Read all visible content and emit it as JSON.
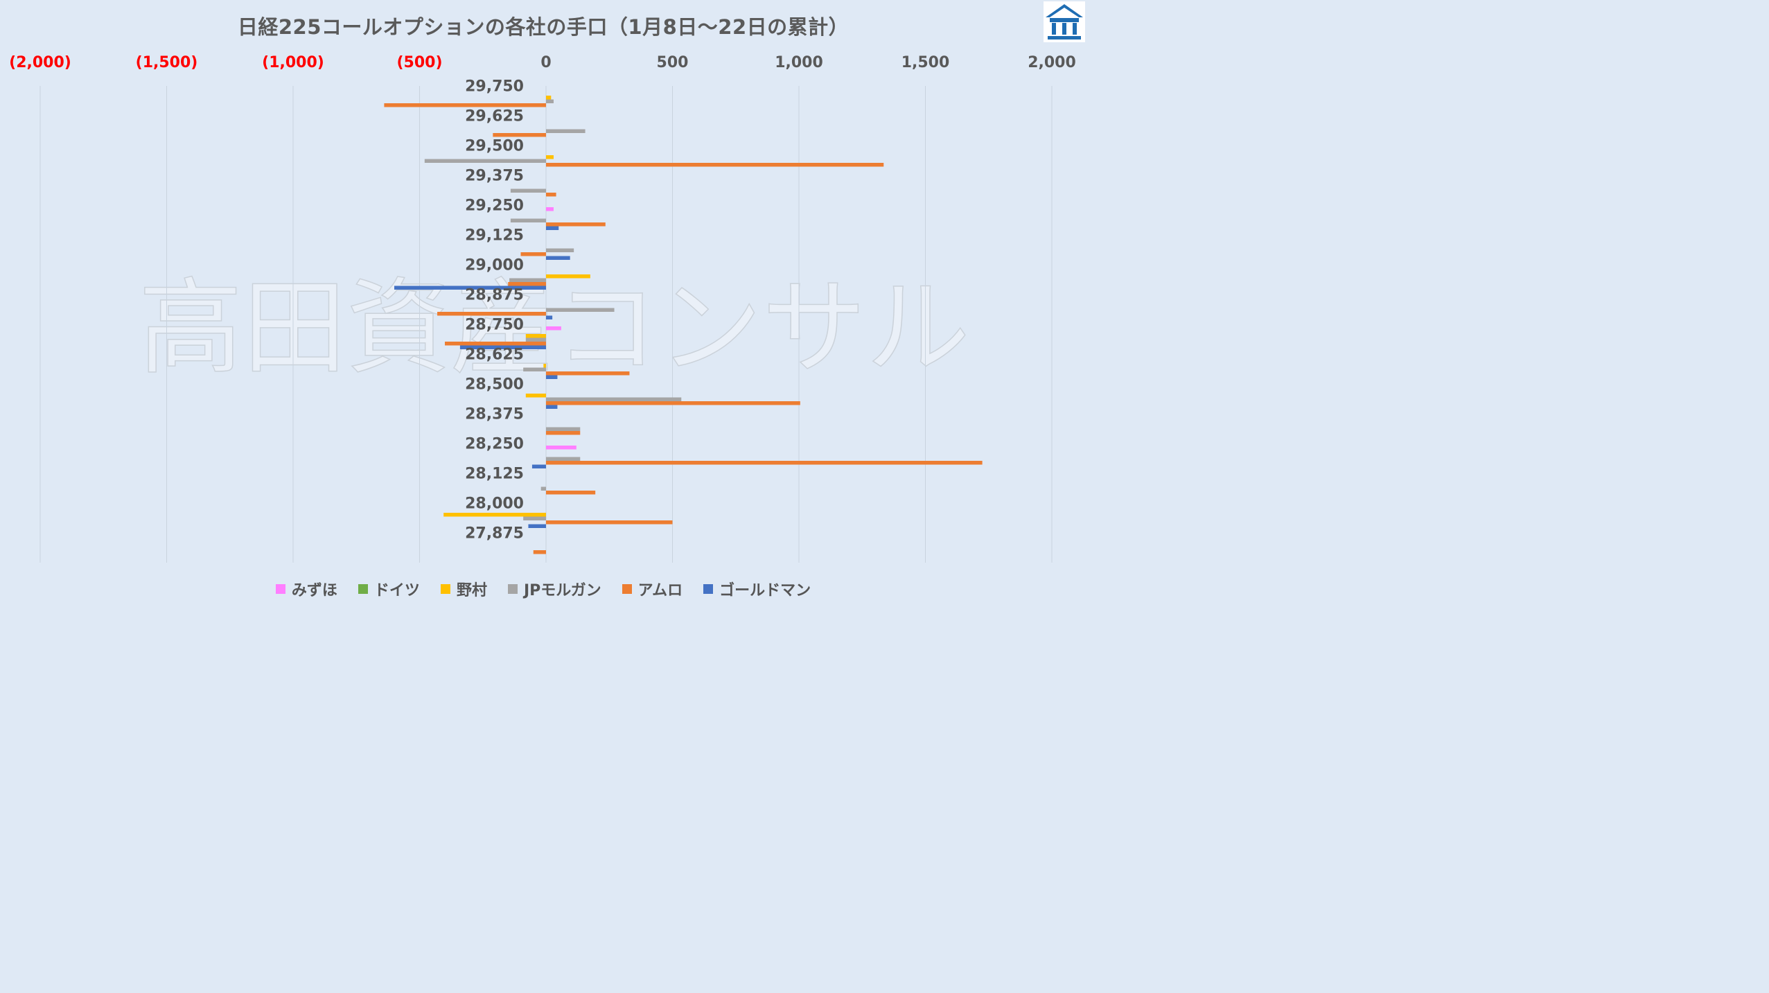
{
  "title": "日経225コールオプションの各社の手口（1月8日〜22日の累計）",
  "watermark_text": "高田資産コンサル",
  "logo_icon": "building-logo-icon",
  "chart_data": {
    "type": "bar",
    "orientation": "horizontal",
    "title": "日経225コールオプションの各社の手口（1月8日〜22日の累計）",
    "xlim": [
      -2000,
      2000
    ],
    "x_ticks": [
      {
        "value": -2000,
        "label": "(2,000)",
        "color": "#ff0000"
      },
      {
        "value": -1500,
        "label": "(1,500)",
        "color": "#ff0000"
      },
      {
        "value": -1000,
        "label": "(1,000)",
        "color": "#ff0000"
      },
      {
        "value": -500,
        "label": "(500)",
        "color": "#ff0000"
      },
      {
        "value": 0,
        "label": "0",
        "color": "#595959"
      },
      {
        "value": 500,
        "label": "500",
        "color": "#595959"
      },
      {
        "value": 1000,
        "label": "1,000",
        "color": "#595959"
      },
      {
        "value": 1500,
        "label": "1,500",
        "color": "#595959"
      },
      {
        "value": 2000,
        "label": "2,000",
        "color": "#595959"
      }
    ],
    "x_axis_position": "top",
    "grid": true,
    "legend_position": "bottom",
    "categories": [
      "29,750",
      "29,625",
      "29,500",
      "29,375",
      "29,250",
      "29,125",
      "29,000",
      "28,875",
      "28,750",
      "28,625",
      "28,500",
      "28,375",
      "28,250",
      "28,125",
      "28,000",
      "27,875"
    ],
    "series": [
      {
        "name": "みずほ",
        "color": "#ff7fff",
        "values": [
          0,
          0,
          0,
          0,
          30,
          0,
          0,
          0,
          60,
          0,
          0,
          0,
          120,
          0,
          0,
          0
        ]
      },
      {
        "name": "ドイツ",
        "color": "#70ad47",
        "values": [
          0,
          0,
          0,
          0,
          0,
          0,
          0,
          0,
          0,
          0,
          0,
          0,
          0,
          0,
          0,
          0
        ]
      },
      {
        "name": "野村",
        "color": "#ffc000",
        "values": [
          20,
          0,
          30,
          0,
          0,
          0,
          175,
          0,
          -80,
          -10,
          -80,
          0,
          0,
          0,
          -405,
          0
        ]
      },
      {
        "name": "JPモルガン",
        "color": "#a5a5a5",
        "values": [
          30,
          155,
          -480,
          -140,
          -140,
          110,
          -145,
          270,
          -80,
          -90,
          535,
          135,
          135,
          -20,
          -90,
          0
        ]
      },
      {
        "name": "アムロ",
        "color": "#ed7d31",
        "values": [
          -640,
          -210,
          1335,
          40,
          235,
          -100,
          -150,
          -430,
          -400,
          330,
          1005,
          135,
          1725,
          195,
          500,
          -50
        ]
      },
      {
        "name": "ゴールドマン",
        "color": "#4472c4",
        "values": [
          0,
          0,
          0,
          0,
          50,
          95,
          -600,
          25,
          -340,
          45,
          45,
          0,
          -55,
          0,
          -70,
          0
        ]
      }
    ]
  }
}
